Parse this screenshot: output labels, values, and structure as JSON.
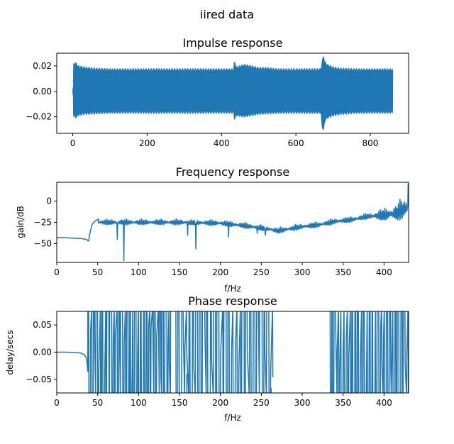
{
  "figure": {
    "title": "iired data"
  },
  "chart_data": [
    {
      "type": "line",
      "title": "Impulse response",
      "xlabel": "",
      "ylabel": "",
      "xlim": [
        -43,
        903
      ],
      "ylim": [
        -0.033,
        0.03
      ],
      "xticks": [
        0,
        200,
        400,
        600,
        800
      ],
      "yticks": [
        0.02,
        0.0,
        -0.02
      ],
      "ytick_labels": [
        "0.02",
        "0.00",
        "−0.02"
      ],
      "color": "#1f77b4",
      "envelope": {
        "x": [
          0,
          2,
          2,
          6,
          15,
          30,
          60,
          100,
          200,
          300,
          400,
          430,
          432,
          435,
          440,
          460,
          480,
          500,
          520,
          550,
          600,
          650,
          668,
          670,
          674,
          678,
          685,
          700,
          720,
          760,
          820,
          860
        ],
        "ymax": [
          0.0,
          0.005,
          0.02,
          0.022,
          0.019,
          0.018,
          0.017,
          0.0165,
          0.0165,
          0.0165,
          0.0165,
          0.0165,
          0.014,
          0.022,
          0.018,
          0.02,
          0.019,
          0.0175,
          0.0175,
          0.0165,
          0.0165,
          0.0165,
          0.0165,
          0.021,
          0.027,
          0.022,
          0.02,
          0.018,
          0.017,
          0.0165,
          0.0165,
          0.0165
        ],
        "ymin": [
          0.0,
          -0.005,
          -0.018,
          -0.02,
          -0.018,
          -0.017,
          -0.0165,
          -0.016,
          -0.016,
          -0.016,
          -0.016,
          -0.016,
          -0.012,
          -0.021,
          -0.018,
          -0.019,
          -0.018,
          -0.017,
          -0.0165,
          -0.016,
          -0.016,
          -0.016,
          -0.016,
          -0.025,
          -0.03,
          -0.022,
          -0.02,
          -0.018,
          -0.017,
          -0.016,
          -0.016,
          -0.016
        ]
      }
    },
    {
      "type": "line",
      "title": "Frequency response",
      "xlabel": "f/Hz",
      "ylabel": "gain/dB",
      "xlim": [
        0,
        430
      ],
      "ylim": [
        -72,
        22
      ],
      "xticks": [
        0,
        50,
        100,
        150,
        200,
        250,
        300,
        350,
        400
      ],
      "yticks": [
        0,
        -25,
        -50
      ],
      "ytick_labels": [
        "0",
        "−25",
        "−50"
      ],
      "color": "#1f77b4",
      "baseline": {
        "x": [
          0,
          10,
          20,
          30,
          36,
          39,
          40,
          41,
          42,
          43,
          45,
          48,
          51
        ],
        "y": [
          -43,
          -43,
          -43.5,
          -44,
          -45,
          -47,
          -40,
          -36,
          -32,
          -28,
          -25,
          -23,
          -21
        ]
      },
      "trend": {
        "x": [
          51,
          100,
          150,
          200,
          230,
          260,
          270,
          300,
          320,
          340,
          360,
          380,
          400,
          415,
          422,
          430
        ],
        "y": [
          -22,
          -22,
          -22,
          -23,
          -26,
          -30,
          -32,
          -27,
          -25,
          -21,
          -19,
          -15,
          -10,
          -5,
          0,
          5
        ]
      },
      "dips": [
        {
          "x": 82,
          "y": -70
        },
        {
          "x": 74,
          "y": -45
        },
        {
          "x": 170,
          "y": -56
        },
        {
          "x": 160,
          "y": -40
        },
        {
          "x": 210,
          "y": -42
        },
        {
          "x": 245,
          "y": -38
        },
        {
          "x": 255,
          "y": -40
        }
      ],
      "peak": {
        "x": 430,
        "y": 20
      }
    },
    {
      "type": "line",
      "title": "Phase response",
      "xlabel": "f/Hz",
      "ylabel": "delay/secs",
      "xlim": [
        0,
        430
      ],
      "ylim": [
        -0.075,
        0.075
      ],
      "xticks": [
        0,
        50,
        100,
        150,
        200,
        250,
        300,
        350,
        400
      ],
      "yticks": [
        0.05,
        0.0,
        -0.05
      ],
      "ytick_labels": [
        "0.05",
        "0.00",
        "−0.05"
      ],
      "color": "#1f77b4",
      "baseline": {
        "x": [
          0,
          10,
          20,
          25,
          30,
          34,
          36,
          37,
          38
        ],
        "y": [
          0,
          0,
          -0.0005,
          -0.001,
          -0.002,
          -0.005,
          -0.01,
          -0.02,
          -0.036
        ]
      },
      "spike_start_x": 38,
      "dense_bands": [
        {
          "x0": 39,
          "x1": 140,
          "count": 60
        },
        {
          "x0": 145,
          "x1": 265,
          "count": 55
        },
        {
          "x0": 333,
          "x1": 430,
          "count": 55
        }
      ],
      "isolated_spikes": [
        {
          "x": 159,
          "y0": -0.075,
          "y1": -0.04
        },
        {
          "x": 262,
          "y0": -0.075,
          "y1": -0.066
        },
        {
          "x": 336,
          "y0": -0.075,
          "y1": -0.06
        },
        {
          "x": 345,
          "y0": -0.075,
          "y1": -0.065
        }
      ]
    }
  ]
}
